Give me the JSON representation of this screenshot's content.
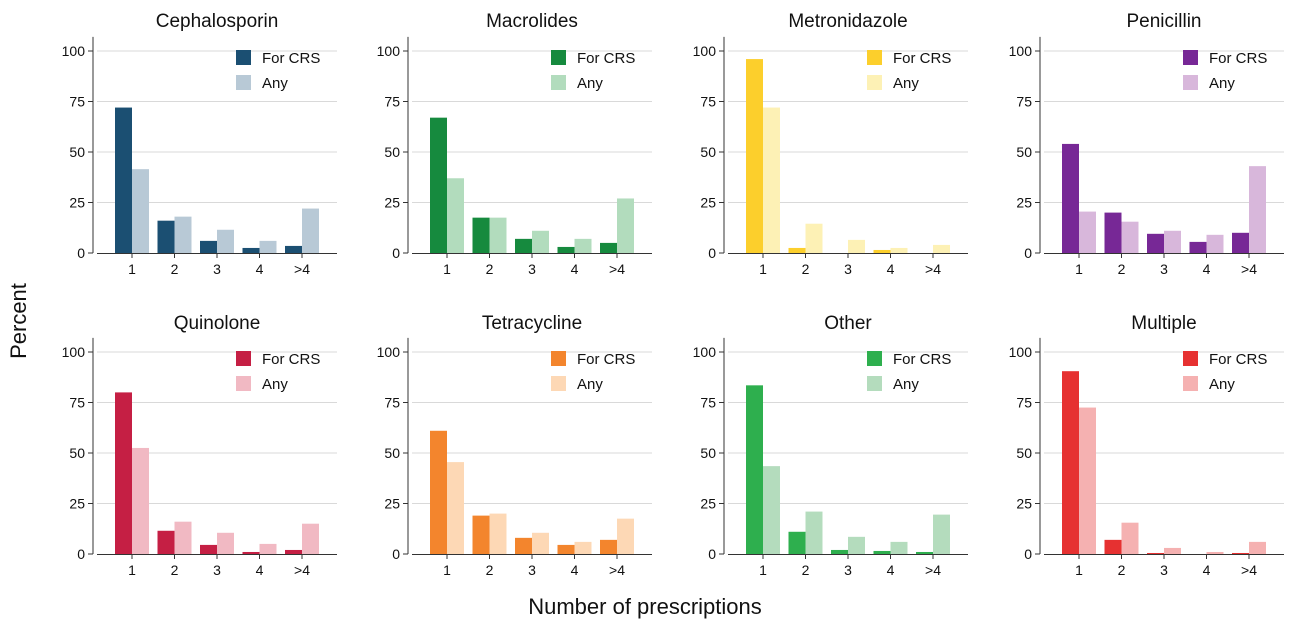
{
  "figure": {
    "ylabel": "Percent",
    "xlabel": "Number of prescriptions"
  },
  "chart_data": [
    {
      "type": "bar",
      "title": "Cephalosporin",
      "categories": [
        "1",
        "2",
        "3",
        "4",
        ">4"
      ],
      "ylim": [
        0,
        107
      ],
      "yticks": [
        0,
        25,
        50,
        75,
        100
      ],
      "grid": true,
      "legend_position": "top-right",
      "series": [
        {
          "name": "For CRS",
          "color": "#1b4f72",
          "values": [
            72,
            16,
            6,
            2.5,
            3.5
          ]
        },
        {
          "name": "Any",
          "color": "#b8c9d6",
          "values": [
            41.5,
            18,
            11.5,
            6,
            22
          ]
        }
      ]
    },
    {
      "type": "bar",
      "title": "Macrolides",
      "categories": [
        "1",
        "2",
        "3",
        "4",
        ">4"
      ],
      "ylim": [
        0,
        107
      ],
      "yticks": [
        0,
        25,
        50,
        75,
        100
      ],
      "grid": true,
      "legend_position": "top-right",
      "series": [
        {
          "name": "For CRS",
          "color": "#168a3e",
          "values": [
            67,
            17.5,
            7,
            3,
            5
          ]
        },
        {
          "name": "Any",
          "color": "#b2dcbd",
          "values": [
            37,
            17.5,
            11,
            7,
            27
          ]
        }
      ]
    },
    {
      "type": "bar",
      "title": "Metronidazole",
      "categories": [
        "1",
        "2",
        "3",
        "4",
        ">4"
      ],
      "ylim": [
        0,
        107
      ],
      "yticks": [
        0,
        25,
        50,
        75,
        100
      ],
      "grid": true,
      "legend_position": "top-right",
      "series": [
        {
          "name": "For CRS",
          "color": "#fccf2c",
          "values": [
            96,
            2.5,
            0,
            1.5,
            0
          ]
        },
        {
          "name": "Any",
          "color": "#fdf1b5",
          "values": [
            72,
            14.5,
            6.5,
            2.5,
            4
          ]
        }
      ]
    },
    {
      "type": "bar",
      "title": "Penicillin",
      "categories": [
        "1",
        "2",
        "3",
        "4",
        ">4"
      ],
      "ylim": [
        0,
        107
      ],
      "yticks": [
        0,
        25,
        50,
        75,
        100
      ],
      "grid": true,
      "legend_position": "top-right",
      "series": [
        {
          "name": "For CRS",
          "color": "#772896",
          "values": [
            54,
            20,
            9.5,
            5.5,
            10
          ]
        },
        {
          "name": "Any",
          "color": "#d8b7db",
          "values": [
            20.5,
            15.5,
            11,
            9,
            43
          ]
        }
      ]
    },
    {
      "type": "bar",
      "title": "Quinolone",
      "categories": [
        "1",
        "2",
        "3",
        "4",
        ">4"
      ],
      "ylim": [
        0,
        107
      ],
      "yticks": [
        0,
        25,
        50,
        75,
        100
      ],
      "grid": true,
      "legend_position": "top-right",
      "series": [
        {
          "name": "For CRS",
          "color": "#c51f44",
          "values": [
            80,
            11.5,
            4.5,
            1,
            2
          ]
        },
        {
          "name": "Any",
          "color": "#f1b9c3",
          "values": [
            52.5,
            16,
            10.5,
            5,
            15
          ]
        }
      ]
    },
    {
      "type": "bar",
      "title": "Tetracycline",
      "categories": [
        "1",
        "2",
        "3",
        "4",
        ">4"
      ],
      "ylim": [
        0,
        107
      ],
      "yticks": [
        0,
        25,
        50,
        75,
        100
      ],
      "grid": true,
      "legend_position": "top-right",
      "series": [
        {
          "name": "For CRS",
          "color": "#f3852d",
          "values": [
            61,
            19,
            8,
            4.5,
            7
          ]
        },
        {
          "name": "Any",
          "color": "#fdd8b5",
          "values": [
            45.5,
            20,
            10.5,
            6,
            17.5
          ]
        }
      ]
    },
    {
      "type": "bar",
      "title": "Other",
      "categories": [
        "1",
        "2",
        "3",
        "4",
        ">4"
      ],
      "ylim": [
        0,
        107
      ],
      "yticks": [
        0,
        25,
        50,
        75,
        100
      ],
      "grid": true,
      "legend_position": "top-right",
      "series": [
        {
          "name": "For CRS",
          "color": "#2eaf4e",
          "values": [
            83.5,
            11,
            2,
            1.5,
            1
          ]
        },
        {
          "name": "Any",
          "color": "#b4dcbd",
          "values": [
            43.5,
            21,
            8.5,
            6,
            19.5
          ]
        }
      ]
    },
    {
      "type": "bar",
      "title": "Multiple",
      "categories": [
        "1",
        "2",
        "3",
        "4",
        ">4"
      ],
      "ylim": [
        0,
        107
      ],
      "yticks": [
        0,
        25,
        50,
        75,
        100
      ],
      "grid": true,
      "legend_position": "top-right",
      "series": [
        {
          "name": "For CRS",
          "color": "#e63131",
          "values": [
            90.5,
            7,
            0.5,
            0,
            0.5
          ]
        },
        {
          "name": "Any",
          "color": "#f5b1b1",
          "values": [
            72.5,
            15.5,
            3,
            1,
            6
          ]
        }
      ]
    }
  ]
}
